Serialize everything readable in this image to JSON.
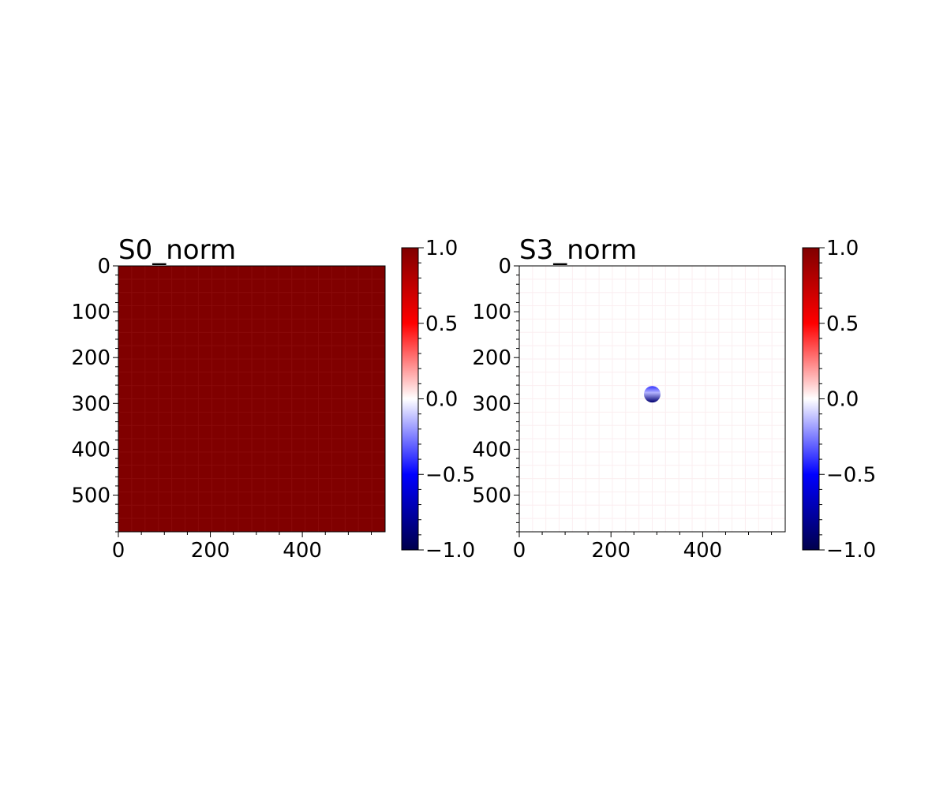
{
  "chart_data": [
    {
      "type": "heatmap",
      "title": "S0_norm",
      "xlabel": "",
      "ylabel": "",
      "xlim": [
        0,
        580
      ],
      "ylim": [
        580,
        0
      ],
      "x_ticks": [
        0,
        200,
        400
      ],
      "y_ticks": [
        0,
        100,
        200,
        300,
        400,
        500
      ],
      "colormap": "seismic",
      "color_range": [
        -1.0,
        1.0
      ],
      "colorbar_ticks": [
        "1.0",
        "0.5",
        "0.0",
        "−0.5",
        "−1.0"
      ],
      "field_value": 1.0,
      "features": []
    },
    {
      "type": "heatmap",
      "title": "S3_norm",
      "xlabel": "",
      "ylabel": "",
      "xlim": [
        0,
        580
      ],
      "ylim": [
        580,
        0
      ],
      "x_ticks": [
        0,
        200,
        400
      ],
      "y_ticks": [
        0,
        100,
        200,
        300,
        400,
        500
      ],
      "colormap": "seismic",
      "color_range": [
        -1.0,
        1.0
      ],
      "colorbar_ticks": [
        "1.0",
        "0.5",
        "0.0",
        "−0.5",
        "−1.0"
      ],
      "field_value": 0.0,
      "features": [
        {
          "shape": "spot",
          "cx": 290,
          "cy": 280,
          "radius": 18,
          "value_top": -0.4,
          "value_bottom": -0.9
        }
      ]
    }
  ],
  "colors": {
    "colormap_stops": [
      "#00004c",
      "#0000ff",
      "#ffffff",
      "#ff0000",
      "#800000"
    ],
    "grid_tint_s0": "#8a0a0a",
    "grid_tint_s3": "#fbeef0",
    "frame": "#000000"
  }
}
